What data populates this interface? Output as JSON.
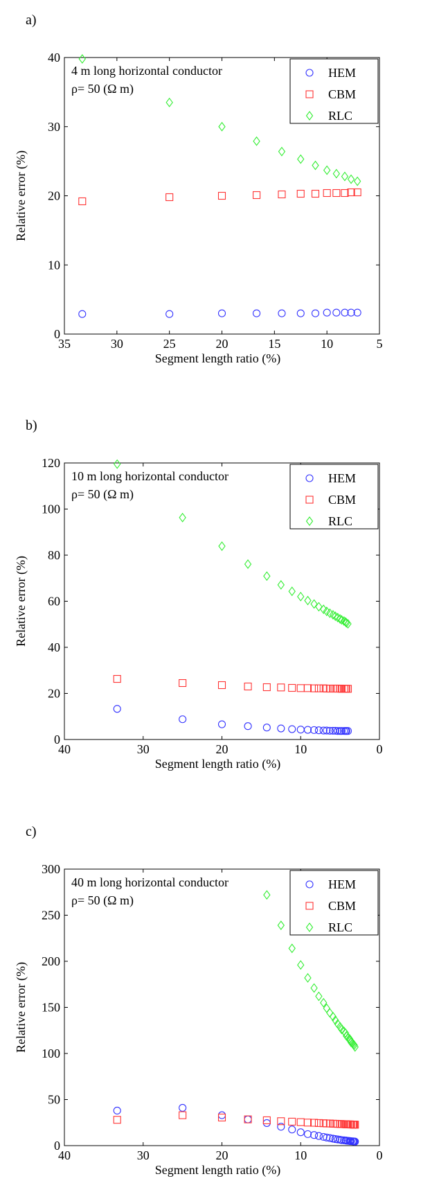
{
  "chart_data": [
    {
      "type": "scatter",
      "panel_label": "a)",
      "annotation_lines": [
        "4 m long horizontal conductor",
        "ρ=  50 (Ω m)"
      ],
      "xlabel": "Segment length ratio (%)",
      "ylabel": "Relative error (%)",
      "xlim": [
        5,
        35
      ],
      "x_reversed": true,
      "ylim": [
        0,
        40
      ],
      "xticks": [
        35,
        30,
        25,
        20,
        15,
        10,
        5
      ],
      "yticks": [
        0,
        10,
        20,
        30,
        40
      ],
      "grid": false,
      "legend_position": "top-right",
      "series": [
        {
          "name": "HEM",
          "marker": "circle",
          "color": "#3333ff",
          "x": [
            33.3,
            25,
            20,
            16.7,
            14.3,
            12.5,
            11.1,
            10,
            9.1,
            8.3,
            7.7,
            7.1
          ],
          "y": [
            2.9,
            2.9,
            3.0,
            3.0,
            3.0,
            3.0,
            3.0,
            3.1,
            3.1,
            3.1,
            3.1,
            3.1
          ]
        },
        {
          "name": "CBM",
          "marker": "square",
          "color": "#ff3333",
          "x": [
            33.3,
            25,
            20,
            16.7,
            14.3,
            12.5,
            11.1,
            10,
            9.1,
            8.3,
            7.7,
            7.1
          ],
          "y": [
            19.2,
            19.8,
            20.0,
            20.1,
            20.2,
            20.3,
            20.3,
            20.4,
            20.4,
            20.4,
            20.5,
            20.5
          ]
        },
        {
          "name": "RLC",
          "marker": "diamond",
          "color": "#33ee33",
          "x": [
            33.3,
            25,
            20,
            16.7,
            14.3,
            12.5,
            11.1,
            10,
            9.1,
            8.3,
            7.7,
            7.1
          ],
          "y": [
            39.8,
            33.5,
            30.0,
            27.9,
            26.4,
            25.3,
            24.4,
            23.7,
            23.2,
            22.8,
            22.4,
            22.1
          ]
        }
      ]
    },
    {
      "type": "scatter",
      "panel_label": "b)",
      "annotation_lines": [
        "10 m long horizontal conductor",
        "ρ=  50 (Ω m)"
      ],
      "xlabel": "Segment length ratio (%)",
      "ylabel": "Relative error (%)",
      "xlim": [
        0,
        40
      ],
      "x_reversed": true,
      "ylim": [
        0,
        120
      ],
      "xticks": [
        40,
        30,
        20,
        10,
        0
      ],
      "yticks": [
        0,
        20,
        40,
        60,
        80,
        100,
        120
      ],
      "grid": false,
      "legend_position": "top-right",
      "series": [
        {
          "name": "HEM",
          "marker": "circle",
          "color": "#3333ff",
          "x": [
            33.3,
            25,
            20,
            16.7,
            14.3,
            12.5,
            11.1,
            10,
            9.1,
            8.3,
            7.7,
            7.1,
            6.7,
            6.3,
            5.9,
            5.6,
            5.3,
            5,
            4.8,
            4.5,
            4.3,
            4.2,
            4
          ],
          "y": [
            13.3,
            8.8,
            6.6,
            5.8,
            5.2,
            4.8,
            4.5,
            4.3,
            4.2,
            4.1,
            4.0,
            3.9,
            3.9,
            3.8,
            3.8,
            3.8,
            3.7,
            3.7,
            3.7,
            3.7,
            3.7,
            3.7,
            3.7
          ]
        },
        {
          "name": "CBM",
          "marker": "square",
          "color": "#ff3333",
          "x": [
            33.3,
            25,
            20,
            16.7,
            14.3,
            12.5,
            11.1,
            10,
            9.1,
            8.3,
            7.7,
            7.1,
            6.7,
            6.3,
            5.9,
            5.6,
            5.3,
            5,
            4.8,
            4.5,
            4.3,
            4.2,
            4
          ],
          "y": [
            26.3,
            24.5,
            23.6,
            23.0,
            22.7,
            22.6,
            22.4,
            22.3,
            22.3,
            22.2,
            22.2,
            22.2,
            22.1,
            22.1,
            22.1,
            22.1,
            22.1,
            22.1,
            22.0,
            22.0,
            22.0,
            22.0,
            22.0
          ]
        },
        {
          "name": "RLC",
          "marker": "diamond",
          "color": "#33ee33",
          "x": [
            33.3,
            25,
            20,
            16.7,
            14.3,
            12.5,
            11.1,
            10,
            9.1,
            8.3,
            7.7,
            7.1,
            6.7,
            6.3,
            5.9,
            5.6,
            5.3,
            5,
            4.8,
            4.5,
            4.3,
            4.2,
            4
          ],
          "y": [
            119.5,
            96.3,
            83.9,
            76.1,
            70.9,
            67.1,
            64.3,
            62.0,
            60.3,
            58.8,
            57.6,
            56.5,
            55.6,
            54.8,
            54.1,
            53.5,
            52.9,
            52.3,
            51.9,
            51.4,
            51.0,
            50.6,
            50.2
          ]
        }
      ]
    },
    {
      "type": "scatter",
      "panel_label": "c)",
      "annotation_lines": [
        "40 m long horizontal conductor",
        "ρ=  50 (Ω m)"
      ],
      "xlabel": "Segment length ratio (%)",
      "ylabel": "Relative error (%)",
      "xlim": [
        0,
        40
      ],
      "x_reversed": true,
      "ylim": [
        0,
        300
      ],
      "xticks": [
        40,
        30,
        20,
        10,
        0
      ],
      "yticks": [
        0,
        50,
        100,
        150,
        200,
        250,
        300
      ],
      "grid": false,
      "legend_position": "top-right",
      "series": [
        {
          "name": "HEM",
          "marker": "circle",
          "color": "#3333ff",
          "x": [
            33.3,
            25,
            20,
            16.7,
            14.3,
            12.5,
            11.1,
            10,
            9.1,
            8.3,
            7.7,
            7.1,
            6.7,
            6.3,
            5.9,
            5.6,
            5.3,
            5,
            4.8,
            4.5,
            4.3,
            4.2,
            4,
            3.8,
            3.7,
            3.6,
            3.4,
            3.3,
            3.2,
            3.1
          ],
          "y": [
            38,
            41,
            33,
            28.5,
            24.5,
            20.5,
            17.5,
            14.5,
            12.5,
            11.5,
            10.5,
            9.5,
            8.8,
            8.2,
            7.6,
            7.1,
            6.7,
            6.4,
            6.0,
            5.8,
            5.6,
            5.4,
            5.2,
            5.0,
            4.9,
            4.8,
            4.7,
            4.6,
            4.5,
            4.4
          ]
        },
        {
          "name": "CBM",
          "marker": "square",
          "color": "#ff3333",
          "x": [
            33.3,
            25,
            20,
            16.7,
            14.3,
            12.5,
            11.1,
            10,
            9.1,
            8.3,
            7.7,
            7.1,
            6.7,
            6.3,
            5.9,
            5.6,
            5.3,
            5,
            4.8,
            4.5,
            4.3,
            4.2,
            4,
            3.8,
            3.7,
            3.6,
            3.4,
            3.3,
            3.2,
            3.1
          ],
          "y": [
            28,
            33,
            30.5,
            28.5,
            27.5,
            26.5,
            26,
            25.5,
            25,
            24.8,
            24.5,
            24.3,
            24.1,
            24,
            23.8,
            23.7,
            23.6,
            23.5,
            23.4,
            23.3,
            23.2,
            23.1,
            23.1,
            23,
            23,
            22.9,
            22.9,
            22.8,
            22.8,
            22.7
          ]
        },
        {
          "name": "RLC",
          "marker": "diamond",
          "color": "#33ee33",
          "x": [
            14.3,
            12.5,
            11.1,
            10,
            9.1,
            8.3,
            7.7,
            7.1,
            6.7,
            6.3,
            5.9,
            5.6,
            5.3,
            5,
            4.8,
            4.5,
            4.3,
            4.2,
            4,
            3.8,
            3.7,
            3.6,
            3.4,
            3.3,
            3.2,
            3.1
          ],
          "y": [
            272,
            239,
            214,
            196,
            182,
            171,
            162,
            155,
            149,
            144,
            140,
            136,
            132,
            129,
            126,
            124,
            122,
            119,
            117,
            116,
            114,
            112,
            111,
            110,
            109,
            107
          ]
        }
      ]
    }
  ]
}
